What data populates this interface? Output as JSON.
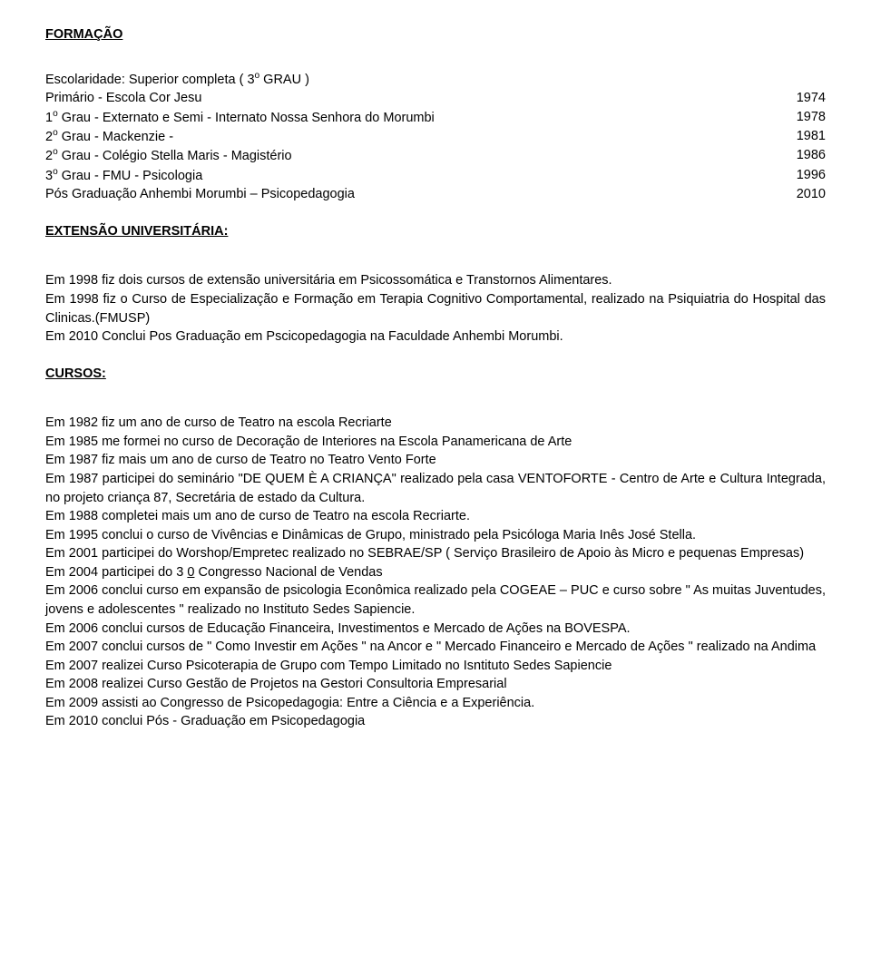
{
  "formacao": {
    "title": "FORMAÇÃO",
    "escolaridade": "Escolaridade: Superior completa ( 3",
    "escolaridade_sup": "o",
    "escolaridade_tail": " GRAU )",
    "rows": [
      {
        "label_pre": "Primário   - Escola Cor Jesu",
        "sup": "",
        "label_post": "",
        "year": "1974"
      },
      {
        "label_pre": "1",
        "sup": "o",
        "label_post": " Grau   - Externato e Semi - Internato Nossa Senhora do Morumbi",
        "year": "1978"
      },
      {
        "label_pre": "2",
        "sup": "o",
        "label_post": " Grau   - Mackenzie -",
        "year": "1981"
      },
      {
        "label_pre": "2",
        "sup": "o",
        "label_post": " Grau   - Colégio Stella Maris - Magistério",
        "year": "1986"
      },
      {
        "label_pre": "3",
        "sup": "o",
        "label_post": " Grau   - FMU - Psicologia",
        "year": "1996"
      },
      {
        "label_pre": "Pós Graduação Anhembi Morumbi – Psicopedagogia",
        "sup": "",
        "label_post": "",
        "year": "2010"
      }
    ]
  },
  "extensao": {
    "title": "EXTENSÃO UNIVERSITÁRIA:",
    "p1": "Em 1998 fiz dois cursos de extensão universitária em Psicossomática e Transtornos Alimentares.",
    "p2": "Em 1998 fiz o Curso de Especialização e Formação em Terapia Cognitivo Comportamental, realizado na Psiquiatria do Hospital das Clinicas.(FMUSP)",
    "p3": "Em 2010 Conclui Pos Graduação em Pscicopedagogia na Faculdade Anhembi Morumbi."
  },
  "cursos": {
    "title": "CURSOS:",
    "p1": "Em 1982 fiz um ano de curso de Teatro na escola Recriarte",
    "p2": "Em 1985 me formei no curso de Decoração de Interiores na Escola Panamericana de Arte",
    "p3": "Em 1987 fiz mais um ano de curso de Teatro no Teatro Vento Forte",
    "p4": "Em 1987 participei do seminário \"DE QUEM È A CRIANÇA\" realizado pela casa VENTOFORTE - Centro de Arte e Cultura Integrada, no projeto criança 87, Secretária de estado da Cultura.",
    "p5": "Em 1988 completei mais um ano de curso de Teatro na escola Recriarte.",
    "p6": "Em 1995 conclui o curso de Vivências e Dinâmicas de Grupo, ministrado pela Psicóloga Maria Inês José Stella.",
    "p7": "Em 2001 participei do Worshop/Empretec realizado no SEBRAE/SP ( Serviço Brasileiro de Apoio às Micro e pequenas Empresas)",
    "p8_pre": "Em 2004 participei do 3 ",
    "p8_underline": "0",
    "p8_post": " Congresso Nacional de Vendas",
    "p9": "Em 2006 conclui curso em expansão de psicologia Econômica realizado pela COGEAE – PUC e curso sobre \" As muitas Juventudes, jovens e adolescentes \" realizado no Instituto Sedes Sapiencie.",
    "p10": "Em 2006 conclui cursos de Educação Financeira, Investimentos e Mercado de Ações na BOVESPA.",
    "p11": "Em 2007 conclui cursos de \" Como Investir em Ações \" na Ancor e \" Mercado Financeiro e Mercado de Ações \" realizado na Andima",
    "p12": "Em 2007 realizei Curso Psicoterapia de Grupo com Tempo Limitado no Isntituto Sedes Sapiencie",
    "p13": "Em 2008 realizei Curso Gestão de Projetos na Gestori Consultoria Empresarial",
    "p14": "Em 2009 assisti ao Congresso de Psicopedagogia: Entre a Ciência e a Experiência.",
    "p15": "Em 2010 conclui Pós - Graduação em Psicopedagogia"
  }
}
